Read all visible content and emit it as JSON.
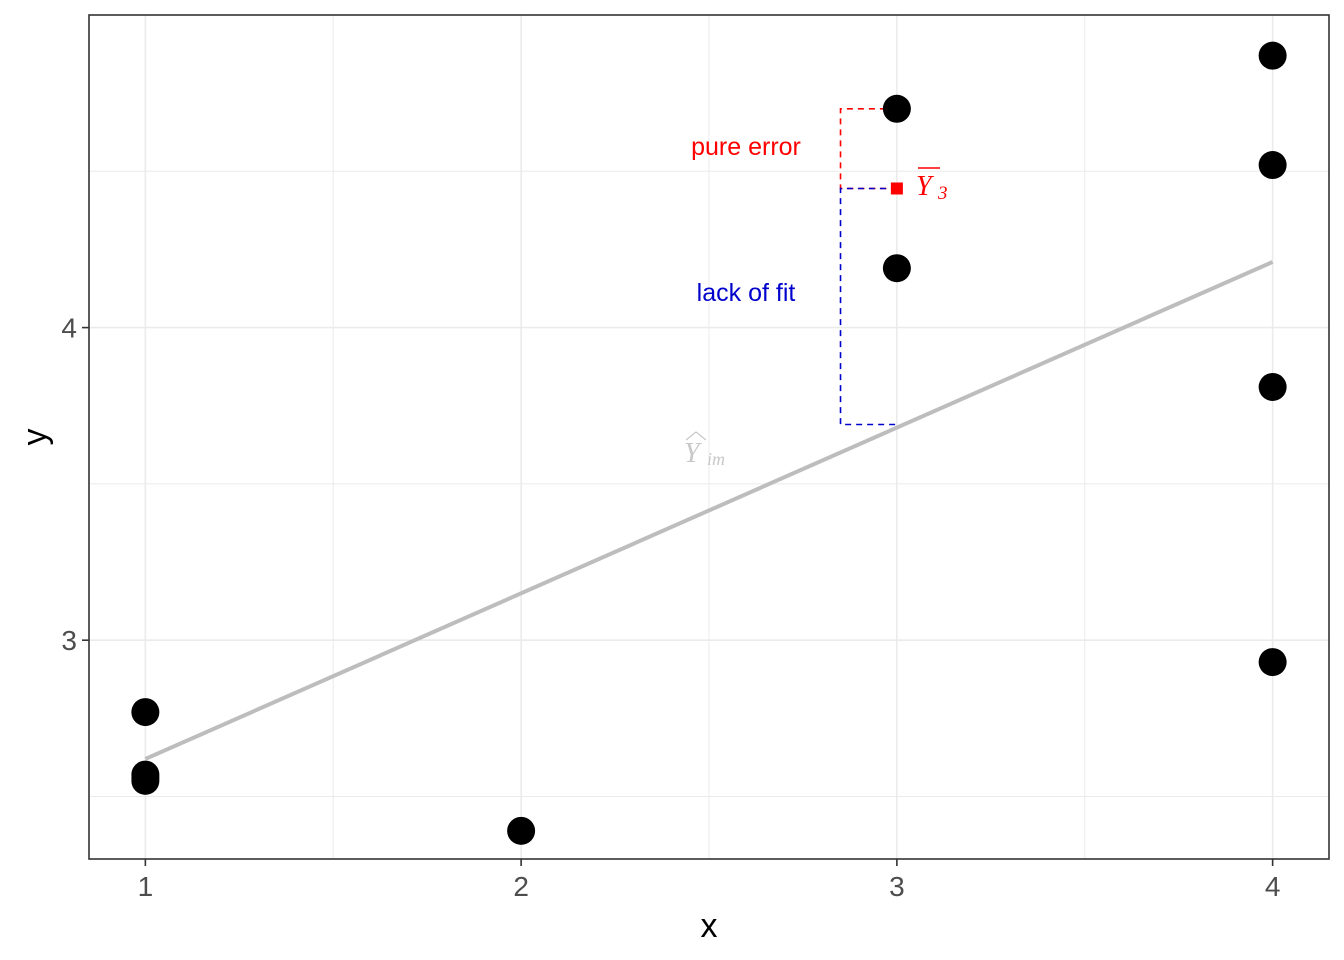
{
  "chart_data": {
    "type": "scatter",
    "title": "",
    "xlabel": "x",
    "ylabel": "y",
    "xlim": [
      0.85,
      4.15
    ],
    "ylim": [
      2.3,
      5.0
    ],
    "x_ticks": [
      1,
      2,
      3,
      4
    ],
    "y_ticks": [
      3,
      4
    ],
    "x_tick_labels": [
      "1",
      "2",
      "3",
      "4"
    ],
    "y_tick_labels": [
      "3",
      "4"
    ],
    "grid": true,
    "points": [
      {
        "x": 1,
        "y": 2.77
      },
      {
        "x": 1,
        "y": 2.57
      },
      {
        "x": 1,
        "y": 2.56
      },
      {
        "x": 1,
        "y": 2.55
      },
      {
        "x": 2,
        "y": 2.39
      },
      {
        "x": 3,
        "y": 4.7
      },
      {
        "x": 3,
        "y": 4.19
      },
      {
        "x": 4,
        "y": 4.87
      },
      {
        "x": 4,
        "y": 4.52
      },
      {
        "x": 4,
        "y": 3.81
      },
      {
        "x": 4,
        "y": 2.93
      }
    ],
    "fit_line": {
      "x": [
        1,
        4
      ],
      "y": [
        2.62,
        4.21
      ]
    },
    "group_mean": {
      "x": 3,
      "y": 4.445
    },
    "pure_error": {
      "label": "pure error",
      "x": 2.85,
      "y_from": 4.7,
      "y_to": 4.445,
      "color": "#ff0000"
    },
    "lack_of_fit": {
      "label": "lack of fit",
      "x": 2.85,
      "y_from": 4.445,
      "y_to": 3.69,
      "color": "#0000cc"
    },
    "annotations": {
      "pure_error_label": "pure error",
      "lack_of_fit_label": "lack of fit",
      "mean_label": "Y",
      "mean_label_sub": "3",
      "fit_label": "Y",
      "fit_label_sub": "im"
    },
    "colors": {
      "points": "#000000",
      "fit_line": "#bdbdbd",
      "pure_error": "#ff0000",
      "lack_of_fit": "#0000cc",
      "grid": "#ebebeb"
    }
  }
}
